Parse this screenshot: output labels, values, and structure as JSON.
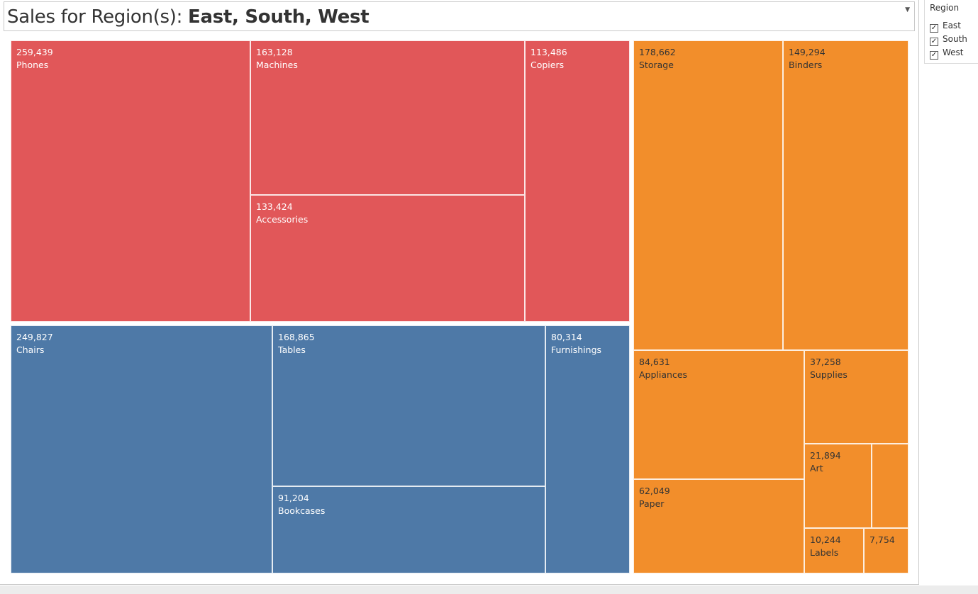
{
  "title": {
    "prefix": "Sales for Region(s): ",
    "regions": "East, South, West",
    "dropdown_icon": "chevron-down-icon"
  },
  "legend": {
    "title": "Region",
    "items": [
      {
        "label": "East",
        "checked": true
      },
      {
        "label": "South",
        "checked": true
      },
      {
        "label": "West",
        "checked": true
      }
    ]
  },
  "chart_data": {
    "type": "treemap",
    "title": "Sales for Region(s): East, South, West",
    "groups": [
      {
        "color": "#e15759",
        "label_color": "#ffffff",
        "items": [
          {
            "name": "Phones",
            "value": 259439,
            "label": "259,439"
          },
          {
            "name": "Machines",
            "value": 163128,
            "label": "163,128"
          },
          {
            "name": "Accessories",
            "value": 133424,
            "label": "133,424"
          },
          {
            "name": "Copiers",
            "value": 113486,
            "label": "113,486"
          }
        ]
      },
      {
        "color": "#4e79a7",
        "label_color": "#ffffff",
        "items": [
          {
            "name": "Chairs",
            "value": 249827,
            "label": "249,827"
          },
          {
            "name": "Tables",
            "value": 168865,
            "label": "168,865"
          },
          {
            "name": "Bookcases",
            "value": 91204,
            "label": "91,204"
          },
          {
            "name": "Furnishings",
            "value": 80314,
            "label": "80,314"
          }
        ]
      },
      {
        "color": "#f28e2b",
        "label_color": "#333333",
        "items": [
          {
            "name": "Storage",
            "value": 178662,
            "label": "178,662"
          },
          {
            "name": "Binders",
            "value": 149294,
            "label": "149,294"
          },
          {
            "name": "Appliances",
            "value": 84631,
            "label": "84,631"
          },
          {
            "name": "Paper",
            "value": 62049,
            "label": "62,049"
          },
          {
            "name": "Supplies",
            "value": 37258,
            "label": "37,258"
          },
          {
            "name": "Art",
            "value": 21894,
            "label": "21,894"
          },
          {
            "name": "",
            "value": 14000,
            "label": ""
          },
          {
            "name": "Labels",
            "value": 10244,
            "label": "10,244"
          },
          {
            "name": "",
            "value": 7754,
            "label": "7,754"
          }
        ]
      }
    ]
  }
}
